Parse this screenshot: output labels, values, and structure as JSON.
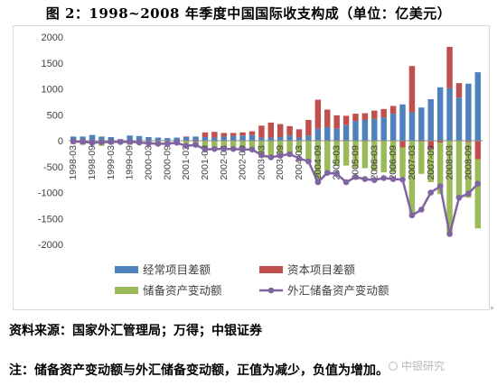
{
  "page": {
    "title": "图 2：1998~2008 年季度中国国际收支构成（单位：亿美元）",
    "source": "资料来源：国家外汇管理局；万得；中银证券",
    "note": "注：储备资产变动额与外汇储备变动额，正值为减少，负值为增加。",
    "watermark": "中银研究"
  },
  "chart_data": {
    "type": "bar",
    "stacked": true,
    "categories": [
      "1998-03",
      "1998-06",
      "1998-09",
      "1998-12",
      "1999-03",
      "1999-06",
      "1999-09",
      "1999-12",
      "2000-03",
      "2000-06",
      "2000-09",
      "2000-12",
      "2001-03",
      "2001-06",
      "2001-09",
      "2001-12",
      "2002-03",
      "2002-06",
      "2002-09",
      "2002-12",
      "2003-03",
      "2003-06",
      "2003-09",
      "2003-12",
      "2004-03",
      "2004-06",
      "2004-09",
      "2004-12",
      "2005-03",
      "2005-06",
      "2005-09",
      "2005-12",
      "2006-03",
      "2006-06",
      "2006-09",
      "2006-12",
      "2007-03",
      "2007-06",
      "2007-09",
      "2007-12",
      "2008-03",
      "2008-06",
      "2008-09",
      "2008-12"
    ],
    "tick_labels": [
      "1998-03",
      "1998-09",
      "1999-03",
      "1999-09",
      "2000-03",
      "2000-09",
      "2001-03",
      "2001-09",
      "2002-03",
      "2002-09",
      "2003-03",
      "2003-09",
      "2004-03",
      "2004-09",
      "2005-03",
      "2005-09",
      "2006-03",
      "2006-09",
      "2007-03",
      "2007-09",
      "2008-03",
      "2008-09"
    ],
    "series": [
      {
        "name": "经常项目差额",
        "type": "bar",
        "color": "#4f81bd",
        "values": [
          80,
          80,
          110,
          80,
          70,
          30,
          100,
          90,
          70,
          60,
          50,
          60,
          70,
          80,
          70,
          60,
          80,
          90,
          100,
          110,
          60,
          60,
          70,
          100,
          60,
          100,
          230,
          260,
          230,
          300,
          380,
          400,
          420,
          450,
          520,
          700,
          550,
          640,
          800,
          1030,
          1010,
          830,
          1100,
          1320
        ]
      },
      {
        "name": "资本项目差额",
        "type": "bar",
        "color": "#c0504d",
        "values": [
          -40,
          -60,
          -20,
          -60,
          -40,
          -20,
          -60,
          -30,
          -10,
          -10,
          -10,
          -30,
          10,
          -20,
          90,
          110,
          70,
          60,
          60,
          70,
          230,
          290,
          250,
          180,
          160,
          300,
          560,
          340,
          260,
          180,
          140,
          130,
          160,
          160,
          150,
          -130,
          890,
          -20,
          -160,
          -40,
          800,
          280,
          -30,
          -360
        ]
      },
      {
        "name": "储备资产变动额",
        "type": "bar",
        "color": "#9bbb59",
        "values": [
          -20,
          -20,
          -60,
          -40,
          -30,
          -30,
          -20,
          -40,
          -50,
          -60,
          -50,
          -30,
          -90,
          -70,
          -160,
          -170,
          -150,
          -150,
          -160,
          -170,
          -330,
          -350,
          -300,
          -270,
          -230,
          -400,
          -790,
          -600,
          -490,
          -480,
          -520,
          -530,
          -580,
          -610,
          -620,
          -570,
          -1440,
          -620,
          -640,
          -990,
          -1810,
          -1110,
          -1070,
          -1330
        ]
      },
      {
        "name": "外汇储备资产变动额",
        "type": "line",
        "color": "#8064a2",
        "values": [
          -15,
          -20,
          -40,
          -30,
          -25,
          -25,
          -20,
          -35,
          -50,
          -60,
          -60,
          -40,
          -100,
          -80,
          -170,
          -160,
          -160,
          -160,
          -170,
          -170,
          -280,
          -320,
          -290,
          -260,
          -340,
          -400,
          -800,
          -620,
          -640,
          -800,
          -700,
          -740,
          -760,
          -720,
          -740,
          -750,
          -1440,
          -1330,
          -1000,
          -880,
          -1800,
          -1100,
          -1020,
          -830
        ]
      }
    ],
    "xlabel": "",
    "ylabel": "",
    "ylim": [
      -2000,
      2000
    ],
    "yticks": [
      -2000,
      -1500,
      -1000,
      -500,
      0,
      500,
      1000,
      1500,
      2000
    ],
    "grid": false,
    "legend_position": "bottom"
  }
}
